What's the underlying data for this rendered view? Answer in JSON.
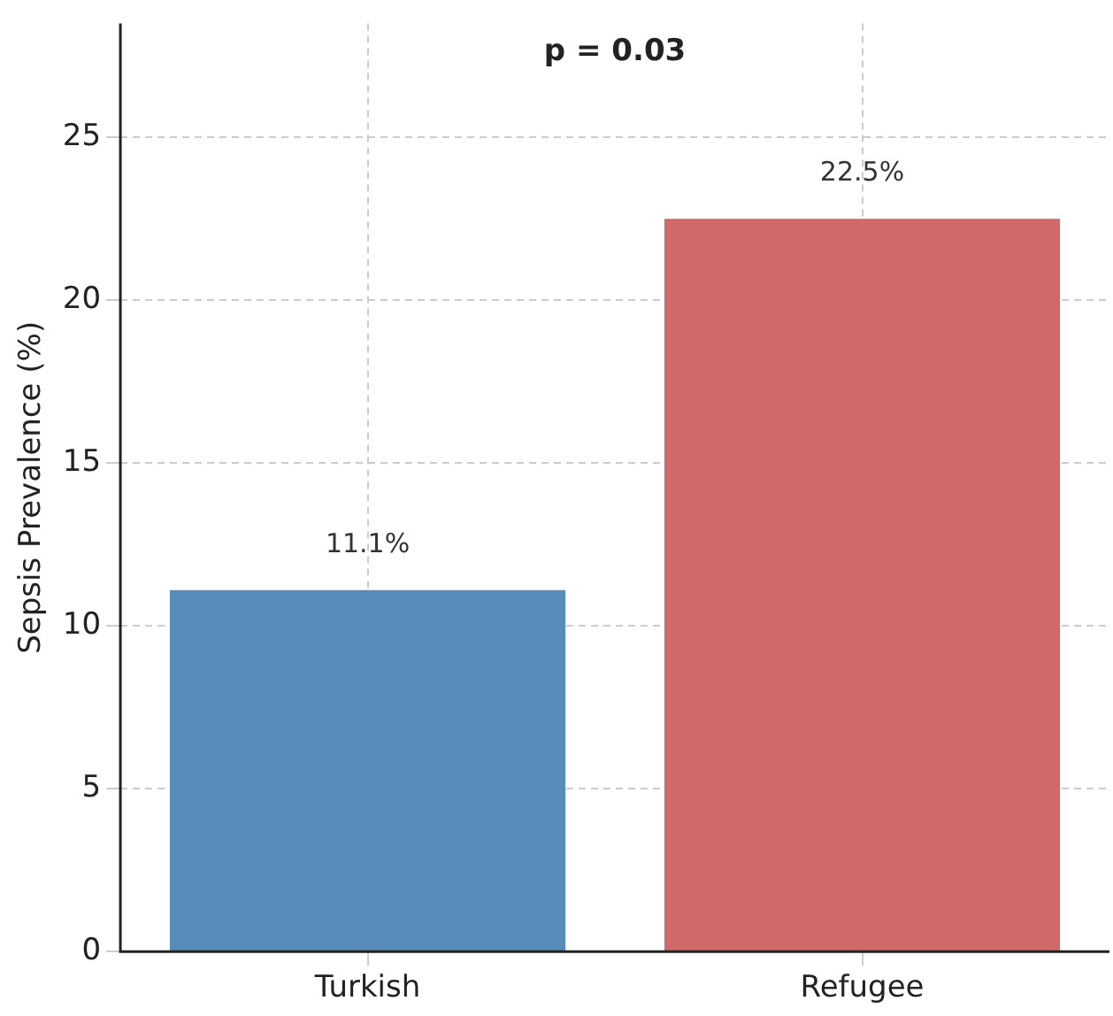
{
  "chart_data": {
    "type": "bar",
    "ylabel": "Sepsis Prevalence (%)",
    "categories": [
      "Turkish",
      "Refugee"
    ],
    "values": [
      11.1,
      22.5
    ],
    "colors": [
      "#568bba",
      "#d0696a"
    ],
    "value_labels": [
      "11.1%",
      "22.5%"
    ],
    "ylim": [
      0,
      28.5
    ],
    "yticks": [
      0,
      5,
      10,
      15,
      20,
      25
    ],
    "grid": true,
    "annotations": [
      "p = 0.03"
    ]
  }
}
